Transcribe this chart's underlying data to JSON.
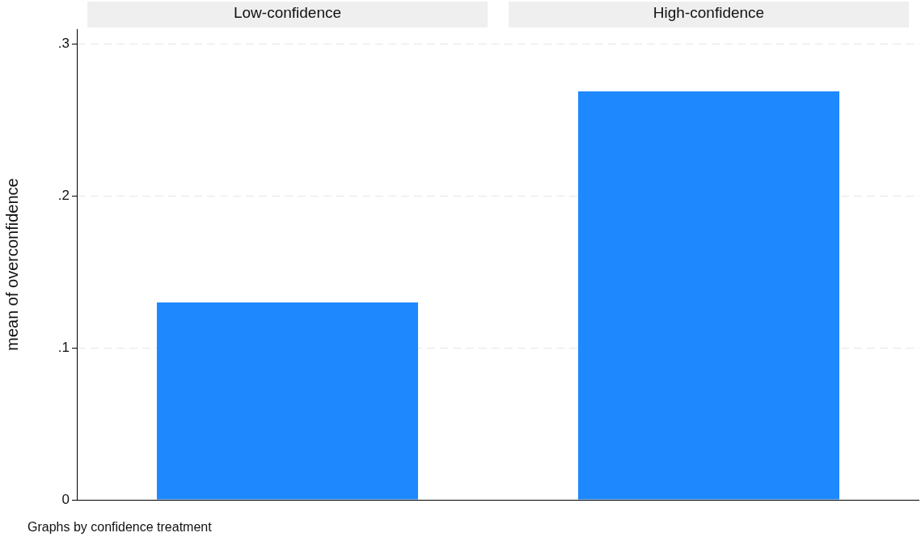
{
  "chart_data": {
    "type": "bar",
    "ylabel": "mean of overconfidence",
    "categories": [
      "Low-confidence",
      "High-confidence"
    ],
    "values": [
      0.13,
      0.269
    ],
    "color": "#1e88ff",
    "ylim": [
      0,
      0.31
    ],
    "yticks": [
      0,
      {
        "value": 0.1,
        "label": ".1"
      },
      {
        "value": 0.2,
        "label": ".2"
      },
      {
        "value": 0.3,
        "label": ".3"
      }
    ],
    "grid": "y",
    "annotations": [
      "Graphs by confidence treatment"
    ]
  }
}
